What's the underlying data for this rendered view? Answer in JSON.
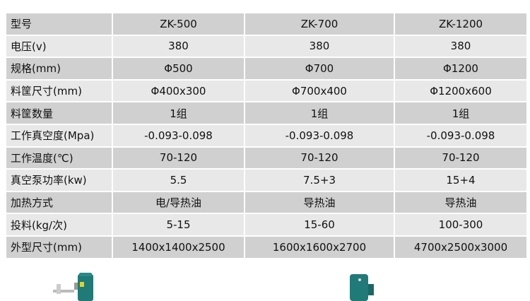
{
  "table": {
    "rows": [
      {
        "label": "型号",
        "values": [
          "ZK-500",
          "ZK-700",
          "ZK-1200"
        ]
      },
      {
        "label": "电压(v)",
        "values": [
          "380",
          "380",
          "380"
        ]
      },
      {
        "label": "规格(mm)",
        "values": [
          "Φ500",
          "Φ700",
          "Φ1200"
        ]
      },
      {
        "label": "料筐尺寸(mm)",
        "values": [
          "Φ400x300",
          "Φ700x400",
          "Φ1200x600"
        ]
      },
      {
        "label": "料筐数量",
        "values": [
          "1组",
          "1组",
          "1组"
        ]
      },
      {
        "label": "工作真空度(Mpa)",
        "values": [
          "-0.093-0.098",
          "-0.093-0.098",
          "-0.093-0.098"
        ]
      },
      {
        "label": "工作温度(℃)",
        "values": [
          "70-120",
          "70-120",
          "70-120"
        ]
      },
      {
        "label": "真空泵功率(kw)",
        "values": [
          "5.5",
          "7.5+3",
          "15+4"
        ]
      },
      {
        "label": "加热方式",
        "values": [
          "电/导热油",
          "导热油",
          "导热油"
        ]
      },
      {
        "label": "投料(kg/次)",
        "values": [
          "5-15",
          "15-60",
          "100-300"
        ]
      },
      {
        "label": "外型尺寸(mm)",
        "values": [
          "1400x1400x2500",
          "1600x1600x2700",
          "4700x2500x3000"
        ]
      }
    ]
  },
  "colors": {
    "row_dark": "#d0d0d0",
    "row_light": "#e8e8e8",
    "motor": "#1f7a78"
  }
}
